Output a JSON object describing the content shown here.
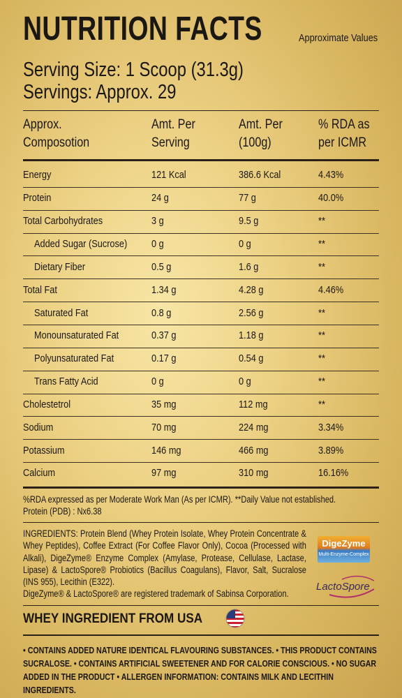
{
  "header": {
    "title": "NUTRITION FACTS",
    "note": "Approximate Values"
  },
  "serving": {
    "size": "Serving Size: 1 Scoop (31.3g)",
    "servings": "Servings: Approx. 29"
  },
  "table": {
    "columns": [
      "Approx.\nComposotion",
      "Amt. Per\nServing",
      "Amt. Per\n(100g)",
      "% RDA as\nper ICMR"
    ],
    "rows": [
      [
        "Energy",
        "121 Kcal",
        "386.6 Kcal",
        "4.43%"
      ],
      [
        "Protein",
        "24 g",
        "77 g",
        "40.0%"
      ],
      [
        "Total Carbohydrates",
        "3 g",
        "9.5 g",
        "**"
      ],
      [
        "Added Sugar (Sucrose)",
        "0 g",
        "0 g",
        "**"
      ],
      [
        "Dietary Fiber",
        "0.5 g",
        "1.6 g",
        "**"
      ],
      [
        "Total Fat",
        "1.34 g",
        "4.28 g",
        "4.46%"
      ],
      [
        "Saturated Fat",
        "0.8 g",
        "2.56 g",
        "**"
      ],
      [
        "Monounsaturated Fat",
        "0.37 g",
        "1.18 g",
        "**"
      ],
      [
        "Polyunsaturated Fat",
        "0.17 g",
        "0.54 g",
        "**"
      ],
      [
        "Trans Fatty Acid",
        "0 g",
        "0 g",
        "**"
      ],
      [
        "Cholestetrol",
        "35 mg",
        "112 mg",
        "**"
      ],
      [
        "Sodium",
        "70 mg",
        "224 mg",
        "3.34%"
      ],
      [
        "Potassium",
        "146 mg",
        "466 mg",
        "3.89%"
      ],
      [
        "Calcium",
        "97 mg",
        "310 mg",
        "16.16%"
      ]
    ]
  },
  "footnote": [
    "%RDA expressed as per Moderate Work Man (As per ICMR). **Daily Value not established.",
    "Protein (PDB) : Nx6.38"
  ],
  "ingredients": "INGREDIENTS: Protein Blend (Whey Protein Isolate, Whey Protein Concentrate & Whey Peptides), Coffee Extract (For Coffee Flavor Only), Cocoa (Processed with Alkali), DigeZyme® Enzyme Complex (Amylase, Protease, Cellulase, Lactase, Lipase) & LactoSpore® Probiotics (Bacillus Coagulans), Flavor, Salt, Sucralose (INS 955), Lecithin (E322).",
  "trademark": "DigeZyme® & LactoSpore® are registered trademark of Sabinsa Corporation.",
  "logos": {
    "digezyme": "DigeZyme",
    "digezyme_sub": "Multi-Enzyme-Complex",
    "lactospore": "LactoSpore"
  },
  "origin": "WHEY INGREDIENT FROM USA",
  "warnings": "• CONTAINS ADDED NATURE IDENTICAL FLAVOURING SUBSTANCES. • THIS PRODUCT CONTAINS SUCRALOSE. • CONTAINS ARTIFICIAL SWEETENER AND FOR CALORIE CONSCIOUS. • NO SUGAR ADDED IN THE PRODUCT • ALLERGEN INFORMATION: CONTAINS MILK AND LECITHIN INGREDIENTS."
}
